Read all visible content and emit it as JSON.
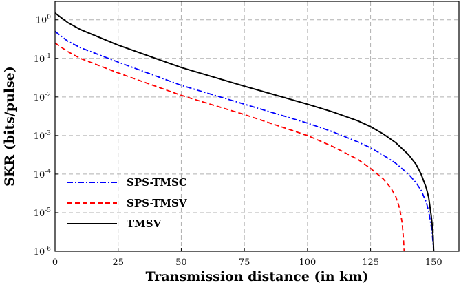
{
  "chart_data": {
    "type": "line",
    "title": "",
    "xlabel": "Transmission distance (in km)",
    "ylabel": "SKR (bits/pulse)",
    "xlim": [
      0,
      160
    ],
    "ylim": [
      1e-06,
      3
    ],
    "yscale": "log",
    "grid": true,
    "grid_style": "dashed",
    "legend_position": "bottom-left",
    "x_ticks": [
      0,
      25,
      50,
      75,
      100,
      125,
      150
    ],
    "x_tick_labels": [
      "0",
      "25",
      "50",
      "75",
      "100",
      "125",
      "150"
    ],
    "y_ticks": [
      1e-06,
      1e-05,
      0.0001,
      0.001,
      0.01,
      0.1,
      1
    ],
    "y_tick_labels": [
      {
        "base": "10",
        "exp": "-6"
      },
      {
        "base": "10",
        "exp": "-5"
      },
      {
        "base": "10",
        "exp": "-4"
      },
      {
        "base": "10",
        "exp": "-3"
      },
      {
        "base": "10",
        "exp": "-2"
      },
      {
        "base": "10",
        "exp": "-1"
      },
      {
        "base": "10",
        "exp": "0"
      }
    ],
    "series": [
      {
        "name": "SPS-TMSC",
        "color": "#0000ff",
        "dash": "dashdot",
        "x": [
          0,
          5,
          10,
          25,
          50,
          75,
          100,
          110,
          120,
          125,
          130,
          135,
          140,
          143,
          145,
          147,
          148,
          149,
          149.5,
          149.8,
          150
        ],
        "y": [
          0.5,
          0.28,
          0.19,
          0.08,
          0.02,
          0.0065,
          0.0021,
          0.00125,
          0.00068,
          0.00048,
          0.00031,
          0.00019,
          0.0001,
          6e-05,
          3.8e-05,
          1.9e-05,
          1.1e-05,
          4.5e-06,
          2.5e-06,
          1.4e-06,
          1e-06
        ]
      },
      {
        "name": "SPS-TMSV",
        "color": "#ff0000",
        "dash": "dashed",
        "x": [
          0,
          5,
          10,
          25,
          50,
          75,
          100,
          110,
          120,
          125,
          130,
          133,
          135,
          136.5,
          137.5,
          138,
          138.3
        ],
        "y": [
          0.25,
          0.15,
          0.1,
          0.042,
          0.011,
          0.0035,
          0.001,
          0.00052,
          0.00024,
          0.00014,
          7.5e-05,
          4.4e-05,
          2.6e-05,
          1.3e-05,
          5.5e-06,
          2.2e-06,
          1e-06
        ]
      },
      {
        "name": "TMSV",
        "color": "#000000",
        "dash": "solid",
        "x": [
          0,
          5,
          10,
          25,
          50,
          75,
          100,
          110,
          120,
          125,
          130,
          135,
          140,
          143,
          145,
          147,
          148,
          149,
          149.5,
          149.8,
          150
        ],
        "y": [
          1.5,
          0.85,
          0.56,
          0.22,
          0.058,
          0.019,
          0.0065,
          0.0041,
          0.0024,
          0.0017,
          0.0011,
          0.00065,
          0.00032,
          0.00018,
          0.0001,
          4.5e-05,
          2.5e-05,
          8.5e-06,
          4.2e-06,
          2e-06,
          1e-06
        ]
      }
    ]
  }
}
